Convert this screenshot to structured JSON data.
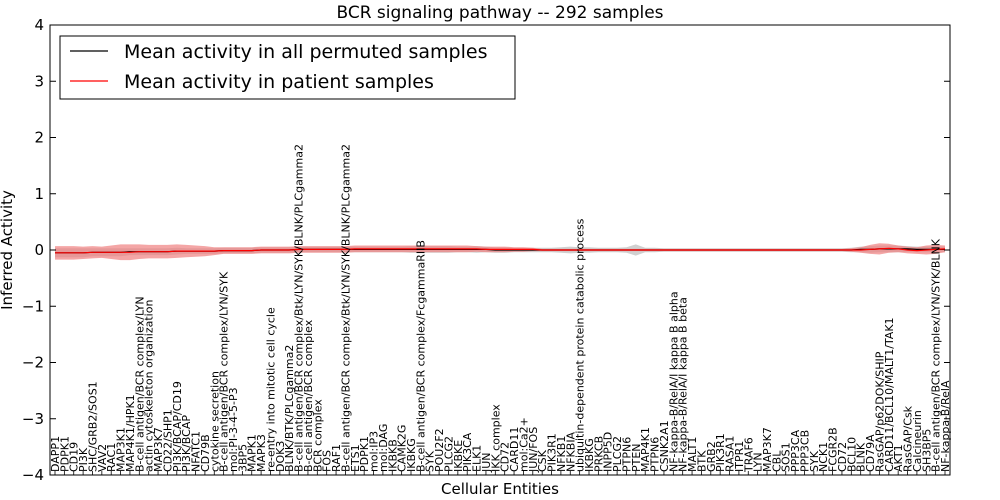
{
  "chart_data": {
    "type": "line",
    "title": "BCR signaling pathway -- 292 samples",
    "xlabel": "Cellular Entities",
    "ylabel": "Inferred Activity",
    "ylim": [
      -4,
      4
    ],
    "yticks": [
      "−4",
      "−3",
      "−2",
      "−1",
      "0",
      "1",
      "2",
      "3",
      "4"
    ],
    "grid": false,
    "legend_position": "top-left",
    "colors": {
      "permuted": "#000000",
      "patient": "#ff0000",
      "patient_band": "#f08080",
      "permuted_band": "#b0b0b0"
    },
    "categories": [
      "DAPP1",
      "PDPK1",
      "CD19",
      "PI3K",
      "SHC/GRB2/SOS1",
      "VAV2",
      "RAC1",
      "MAP3K1",
      "MAP4K1/HPK1",
      "B-cell antigen/BCR complex/LYN",
      "actin cytoskeleton organization",
      "MAP3K7",
      "CD22/SHP1",
      "PI3K/BCAP/CD19",
      "PI3K/BCAP",
      "NFATC1",
      "CD79B",
      "cytokine secretion",
      "B-cell antigen/BCR complex/LYN/SYK",
      "mol:PI-3-4-5-P3",
      "3BP5",
      "MAPK1",
      "MAPK3",
      "re-entry into mitotic cell cycle",
      "DOK3",
      "BLNK/BTK/PLCgamma2",
      "B-cell antigen/BCR complex/Btk/LYN/SYK/BLNK/PLCgamma2",
      "B-cell antigen/BCR complex",
      "BCR complex",
      "FOS",
      "RAF1",
      "B-cell antigen/BCR complex/Btk/LYN/SYK/BLNK/PLCgamma2",
      "ETS1",
      "PDPK1",
      "mol:IP3",
      "mol:DAG",
      "IKBKB",
      "CAMK2G",
      "IKBKG",
      "B-cell antigen/BCR complex/FcgammaRIIB",
      "SYK",
      "POU2F2",
      "PLCG2",
      "IKBKE",
      "PIK3CA",
      "ELK1",
      "JUN",
      "IKK complex",
      "CD72",
      "CARD11",
      "mol:Ca2+",
      "JUN/FOS",
      "CSK",
      "PIK3R1",
      "NFKB1",
      "NFKBIA",
      "ubiquitin-dependent protein catabolic process",
      "IKBKG",
      "PRKCB",
      "INPP5D",
      "PLCG2",
      "PTPN6",
      "PTEN",
      "MAP4K1",
      "PTPN6",
      "CSNK2A1",
      "NF-kappa-B/RelA/I kappa B alpha",
      "NF-kappa-B/RelA/I kappa B beta",
      "MALT1",
      "BTK",
      "GRB2",
      "PIK3R1",
      "RASA1",
      "ITPR1",
      "TRAF6",
      "LYN",
      "MAP3K7",
      "CBL",
      "SOS1",
      "PPP3CA",
      "PPP3CB",
      "SYK",
      "NCK1",
      "FCGR2B",
      "CD72",
      "BCL10",
      "BLNK",
      "CD79A",
      "RasGAP/p62DOK/SHIP",
      "CARD11/BCL10/MALT1/TAK1",
      "AKT1",
      "RasGAP/Csk",
      "Calcineurin",
      "SH3BP5",
      "B-cell antigen/BCR complex/LYN/SYK/BLNK",
      "NF-kappa-B/RelA"
    ],
    "series": [
      {
        "name": "Mean activity in all permuted samples",
        "values": [
          -0.05,
          -0.05,
          -0.05,
          -0.05,
          -0.04,
          -0.04,
          -0.04,
          -0.04,
          -0.03,
          -0.03,
          -0.03,
          -0.03,
          -0.03,
          -0.02,
          -0.02,
          -0.02,
          -0.02,
          -0.02,
          -0.01,
          -0.01,
          -0.01,
          -0.01,
          0.0,
          0.0,
          0.0,
          0.0,
          0.01,
          0.01,
          0.01,
          0.01,
          0.01,
          0.01,
          0.01,
          0.01,
          0.01,
          0.01,
          0.01,
          0.01,
          0.01,
          0.01,
          0.01,
          0.01,
          0.01,
          0.01,
          0.01,
          0.01,
          0.01,
          0.0,
          0.0,
          0.0,
          0.0,
          0.0,
          0.0,
          0.0,
          0.0,
          0.0,
          0.0,
          0.0,
          0.0,
          0.0,
          0.0,
          0.0,
          0.0,
          0.0,
          0.0,
          0.0,
          0.0,
          0.0,
          0.0,
          0.0,
          0.0,
          0.0,
          0.0,
          0.0,
          0.0,
          0.0,
          0.0,
          0.0,
          0.0,
          0.0,
          0.0,
          0.0,
          0.0,
          0.0,
          0.0,
          0.0,
          0.01,
          0.01,
          0.02,
          0.02,
          0.02,
          0.02,
          0.01,
          0.01,
          0.01,
          0.01
        ]
      },
      {
        "name": "Mean activity in patient samples",
        "values": [
          -0.05,
          -0.05,
          -0.05,
          -0.05,
          -0.04,
          -0.04,
          -0.04,
          -0.04,
          -0.04,
          -0.03,
          -0.03,
          -0.03,
          -0.03,
          -0.02,
          -0.02,
          -0.02,
          -0.02,
          -0.02,
          -0.01,
          -0.01,
          -0.01,
          -0.01,
          0.0,
          0.0,
          0.0,
          0.0,
          0.01,
          0.01,
          0.01,
          0.01,
          0.01,
          0.01,
          0.02,
          0.02,
          0.02,
          0.02,
          0.02,
          0.02,
          0.02,
          0.02,
          0.02,
          0.02,
          0.02,
          0.02,
          0.02,
          0.02,
          0.01,
          0.01,
          0.01,
          0.01,
          0.01,
          0.01,
          0.0,
          0.0,
          0.0,
          0.0,
          0.0,
          0.0,
          0.0,
          0.0,
          0.0,
          0.0,
          0.0,
          0.0,
          0.0,
          0.0,
          0.0,
          0.0,
          0.0,
          0.0,
          0.0,
          0.0,
          0.0,
          0.0,
          0.0,
          0.0,
          0.0,
          0.0,
          0.0,
          0.0,
          0.0,
          0.0,
          0.0,
          0.0,
          0.0,
          0.0,
          0.0,
          0.01,
          0.02,
          0.03,
          0.02,
          0.0,
          -0.01,
          0.0,
          0.01,
          0.02
        ]
      }
    ],
    "patient_band_halfwidth": [
      0.12,
      0.12,
      0.12,
      0.11,
      0.11,
      0.1,
      0.12,
      0.14,
      0.14,
      0.13,
      0.12,
      0.12,
      0.12,
      0.12,
      0.11,
      0.1,
      0.09,
      0.07,
      0.06,
      0.06,
      0.06,
      0.06,
      0.06,
      0.06,
      0.06,
      0.06,
      0.06,
      0.06,
      0.06,
      0.06,
      0.06,
      0.06,
      0.06,
      0.06,
      0.06,
      0.06,
      0.06,
      0.06,
      0.06,
      0.06,
      0.06,
      0.06,
      0.06,
      0.06,
      0.06,
      0.05,
      0.05,
      0.05,
      0.05,
      0.04,
      0.04,
      0.03,
      0.02,
      0.02,
      0.02,
      0.02,
      0.02,
      0.02,
      0.02,
      0.02,
      0.02,
      0.02,
      0.02,
      0.02,
      0.02,
      0.02,
      0.02,
      0.02,
      0.02,
      0.02,
      0.02,
      0.02,
      0.02,
      0.02,
      0.02,
      0.02,
      0.02,
      0.02,
      0.02,
      0.02,
      0.02,
      0.02,
      0.02,
      0.02,
      0.02,
      0.03,
      0.05,
      0.08,
      0.1,
      0.08,
      0.06,
      0.06,
      0.06,
      0.08,
      0.08,
      0.06
    ],
    "permuted_band_halfwidth": [
      0.08,
      0.08,
      0.08,
      0.08,
      0.07,
      0.07,
      0.07,
      0.07,
      0.06,
      0.06,
      0.06,
      0.06,
      0.06,
      0.06,
      0.05,
      0.05,
      0.05,
      0.05,
      0.05,
      0.05,
      0.05,
      0.05,
      0.05,
      0.05,
      0.05,
      0.05,
      0.05,
      0.05,
      0.05,
      0.05,
      0.05,
      0.05,
      0.05,
      0.05,
      0.05,
      0.05,
      0.05,
      0.05,
      0.06,
      0.06,
      0.06,
      0.06,
      0.06,
      0.05,
      0.05,
      0.06,
      0.05,
      0.05,
      0.05,
      0.04,
      0.04,
      0.04,
      0.04,
      0.04,
      0.05,
      0.06,
      0.05,
      0.05,
      0.04,
      0.04,
      0.04,
      0.05,
      0.1,
      0.04,
      0.04,
      0.03,
      0.03,
      0.03,
      0.03,
      0.03,
      0.03,
      0.03,
      0.03,
      0.03,
      0.03,
      0.03,
      0.03,
      0.03,
      0.03,
      0.03,
      0.03,
      0.03,
      0.03,
      0.03,
      0.03,
      0.04,
      0.05,
      0.06,
      0.06,
      0.06,
      0.06,
      0.05,
      0.05,
      0.05,
      0.05,
      0.05
    ]
  }
}
